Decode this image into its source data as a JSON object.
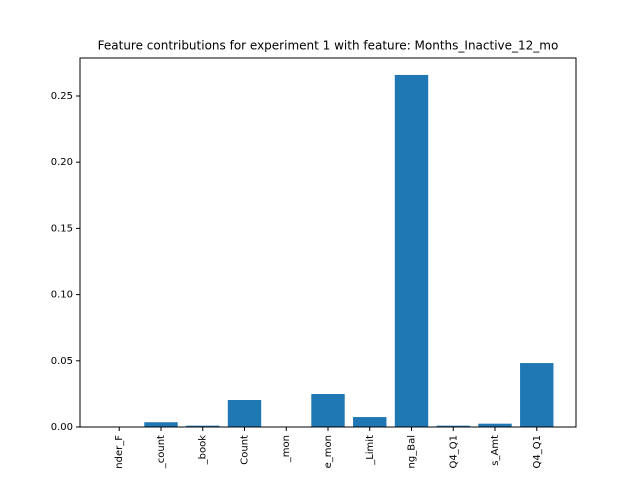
{
  "chart_data": {
    "type": "bar",
    "title": "Feature contributions for experiment 1 with feature: Months_Inactive_12_mo",
    "categories": [
      "nder_F",
      "_count",
      "_book",
      "Count",
      "_mon",
      "e_mon",
      "_Limit",
      "ng_Bal",
      "Q4_Q1",
      "s_Amt",
      "Q4_Q1"
    ],
    "values": [
      0,
      0.0036,
      0.001,
      0.0204,
      0,
      0.0249,
      0.0075,
      0.2659,
      0.001,
      0.0025,
      0.0483
    ],
    "color": "#1f77b4",
    "ylim": [
      0,
      0.2787
    ],
    "yticks": [
      {
        "value": 0,
        "label": "0.00"
      },
      {
        "value": 0.05,
        "label": "0.05"
      },
      {
        "value": 0.1,
        "label": "0.10"
      },
      {
        "value": 0.15,
        "label": "0.15"
      },
      {
        "value": 0.2,
        "label": "0.20"
      },
      {
        "value": 0.25,
        "label": "0.25"
      }
    ],
    "grid": false
  }
}
